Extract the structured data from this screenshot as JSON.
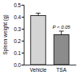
{
  "chart_data": {
    "type": "bar",
    "y_label": "Spleen weight (g)",
    "categories": [
      "Vehicle",
      "TSA"
    ],
    "values": [
      0.41,
      0.25
    ],
    "errors": [
      0.02,
      0.03
    ],
    "colors": [
      "#d4d4d4",
      "#8c8c8c"
    ],
    "ylim": [
      0,
      0.5
    ],
    "yticks": [
      {
        "value": 0,
        "label": "0.0"
      },
      0.1,
      0.2,
      0.3,
      0.4,
      0.5
    ],
    "grid": false,
    "annotations": [
      {
        "text": "P < 0.05",
        "category": "TSA"
      }
    ]
  }
}
